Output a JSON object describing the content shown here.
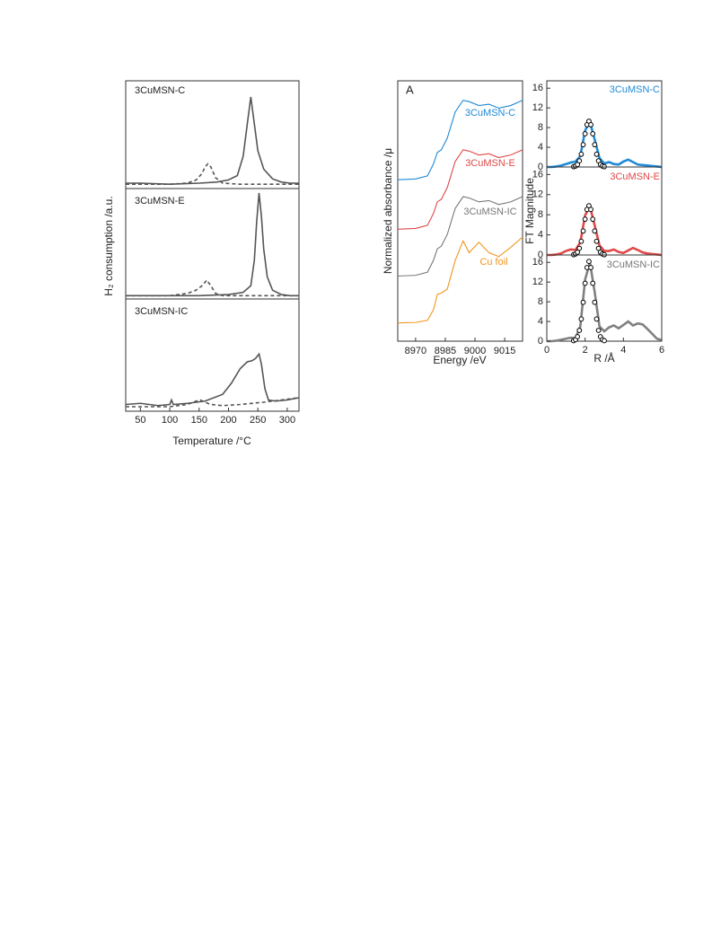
{
  "chart_data": [
    {
      "type": "line",
      "title": "3CuMSN-C",
      "xlim": [
        25,
        320
      ],
      "ylim": [
        0,
        1
      ],
      "series": [
        {
          "color": "#555555",
          "style": "solid",
          "x": [
            25,
            50,
            100,
            150,
            180,
            200,
            215,
            225,
            232,
            238,
            244,
            250,
            260,
            275,
            290,
            305,
            320
          ],
          "values": [
            0.05,
            0.05,
            0.04,
            0.05,
            0.06,
            0.08,
            0.12,
            0.3,
            0.6,
            0.85,
            0.6,
            0.35,
            0.18,
            0.09,
            0.06,
            0.05,
            0.05
          ]
        },
        {
          "color": "#555555",
          "style": "dashed",
          "x": [
            25,
            100,
            130,
            145,
            155,
            160,
            165,
            170,
            178,
            190,
            220,
            260,
            320
          ],
          "values": [
            0.04,
            0.04,
            0.05,
            0.08,
            0.14,
            0.2,
            0.23,
            0.2,
            0.1,
            0.05,
            0.04,
            0.04,
            0.04
          ]
        }
      ]
    },
    {
      "type": "line",
      "title": "3CuMSN-E",
      "ylabel": "H₂ consumption /a.u.",
      "xlim": [
        25,
        320
      ],
      "ylim": [
        0,
        1
      ],
      "series": [
        {
          "color": "#555555",
          "style": "solid",
          "x": [
            25,
            50,
            100,
            150,
            200,
            225,
            238,
            244,
            248,
            252,
            256,
            260,
            266,
            275,
            290,
            305,
            320
          ],
          "values": [
            0.03,
            0.03,
            0.03,
            0.03,
            0.04,
            0.06,
            0.12,
            0.35,
            0.7,
            0.96,
            0.75,
            0.45,
            0.2,
            0.08,
            0.04,
            0.03,
            0.03
          ]
        },
        {
          "color": "#555555",
          "style": "dashed",
          "x": [
            25,
            100,
            130,
            145,
            155,
            163,
            170,
            178,
            190,
            230,
            320
          ],
          "values": [
            0.03,
            0.03,
            0.05,
            0.08,
            0.12,
            0.17,
            0.12,
            0.05,
            0.03,
            0.03,
            0.03
          ]
        }
      ]
    },
    {
      "type": "line",
      "title": "3CuMSN-IC",
      "xlabel": "Temperature /°C",
      "xlim": [
        25,
        320
      ],
      "ylim": [
        0,
        1
      ],
      "xticks": [
        50,
        100,
        150,
        200,
        250,
        300
      ],
      "series": [
        {
          "color": "#555555",
          "style": "solid",
          "x": [
            25,
            50,
            80,
            100,
            103,
            106,
            130,
            160,
            190,
            205,
            220,
            232,
            240,
            246,
            252,
            256,
            262,
            268,
            280,
            300,
            320
          ],
          "values": [
            0.06,
            0.07,
            0.05,
            0.06,
            0.1,
            0.06,
            0.07,
            0.09,
            0.15,
            0.25,
            0.38,
            0.44,
            0.45,
            0.47,
            0.51,
            0.42,
            0.2,
            0.1,
            0.09,
            0.1,
            0.12
          ]
        },
        {
          "color": "#555555",
          "style": "dashed",
          "x": [
            25,
            100,
            130,
            145,
            152,
            160,
            170,
            190,
            220,
            260,
            290,
            320
          ],
          "values": [
            0.04,
            0.04,
            0.06,
            0.09,
            0.1,
            0.08,
            0.06,
            0.05,
            0.06,
            0.08,
            0.1,
            0.12
          ]
        }
      ]
    },
    {
      "type": "line",
      "panel_label": "A",
      "xlabel": "Energy /eV",
      "ylabel": "Normalized absorbance /μ",
      "xlim": [
        8961,
        9024
      ],
      "ylim": [
        0,
        10
      ],
      "xticks": [
        8970,
        8985,
        9000,
        9015
      ],
      "x": [
        8961,
        8970,
        8976,
        8979,
        8981,
        8983,
        8986,
        8990,
        8994,
        8997,
        9002,
        9007,
        9012,
        9018,
        9024
      ],
      "series": [
        {
          "name": "3CuMSN-C",
          "color": "#1f8ad6",
          "values": [
            6.2,
            6.23,
            6.35,
            6.8,
            7.25,
            7.35,
            7.8,
            8.8,
            9.25,
            9.2,
            9.05,
            9.1,
            8.95,
            9.05,
            9.25
          ]
        },
        {
          "name": "3CuMSN-E",
          "color": "#e04848",
          "values": [
            4.3,
            4.33,
            4.45,
            4.9,
            5.35,
            5.45,
            5.9,
            6.9,
            7.35,
            7.3,
            7.15,
            7.2,
            7.05,
            7.15,
            7.35
          ]
        },
        {
          "name": "3CuMSN-IC",
          "color": "#777777",
          "values": [
            2.5,
            2.53,
            2.65,
            3.1,
            3.55,
            3.65,
            4.1,
            5.1,
            5.55,
            5.5,
            5.35,
            5.4,
            5.25,
            5.35,
            5.55
          ]
        },
        {
          "name": "Cu foil",
          "color": "#f0961e",
          "values": [
            0.7,
            0.72,
            0.8,
            1.2,
            1.8,
            1.85,
            2.0,
            3.1,
            3.85,
            3.4,
            3.8,
            3.4,
            3.25,
            3.6,
            4.0
          ]
        }
      ]
    },
    {
      "type": "line",
      "title": "3CuMSN-C",
      "title_color": "#1f8ad6",
      "xlim": [
        0,
        6
      ],
      "ylim": [
        0,
        17.5
      ],
      "yticks": [
        0,
        4,
        8,
        12,
        16
      ],
      "series": [
        {
          "color": "#1f8ad6",
          "style": "solid",
          "x": [
            0,
            0.25,
            0.5,
            0.75,
            1,
            1.25,
            1.5,
            1.75,
            2,
            2.25,
            2.5,
            2.75,
            3,
            3.25,
            3.5,
            3.75,
            4,
            4.25,
            4.5,
            4.75,
            5,
            5.25,
            5.5,
            5.75,
            6
          ],
          "values": [
            0,
            0,
            0.1,
            0.3,
            0.6,
            0.9,
            1.1,
            2.2,
            7.4,
            9.2,
            5.6,
            1.8,
            0.7,
            1.0,
            0.6,
            0.5,
            1.1,
            1.5,
            1.0,
            0.5,
            0.4,
            0.3,
            0.2,
            0.1,
            0
          ]
        },
        {
          "color": "#000000",
          "style": "circles",
          "x": [
            1.4,
            1.5,
            1.6,
            1.7,
            1.8,
            1.9,
            2.0,
            2.1,
            2.2,
            2.3,
            2.4,
            2.5,
            2.6,
            2.7,
            2.8,
            2.9,
            3.0
          ],
          "values": [
            0.06,
            0.19,
            0.52,
            1.26,
            2.59,
            4.53,
            6.75,
            8.58,
            9.3,
            8.58,
            6.75,
            4.53,
            2.59,
            1.26,
            0.52,
            0.19,
            0.06
          ]
        }
      ]
    },
    {
      "type": "line",
      "title": "3CuMSN-E",
      "title_color": "#e04848",
      "ylabel": "FT Magnitude",
      "xlim": [
        0,
        6
      ],
      "ylim": [
        0,
        17.5
      ],
      "yticks": [
        0,
        4,
        8,
        12,
        16
      ],
      "series": [
        {
          "color": "#e04848",
          "style": "solid",
          "x": [
            0,
            0.25,
            0.5,
            0.75,
            1,
            1.25,
            1.5,
            1.75,
            2,
            2.25,
            2.5,
            2.75,
            3,
            3.25,
            3.5,
            3.75,
            4,
            4.25,
            4.5,
            4.75,
            5,
            5.25,
            5.5,
            5.75,
            6
          ],
          "values": [
            0,
            0,
            0.1,
            0.3,
            0.8,
            1.1,
            1.0,
            2.5,
            7.9,
            9.7,
            5.9,
            1.9,
            0.8,
            0.8,
            1.1,
            0.6,
            0.4,
            0.9,
            1.4,
            1.0,
            0.5,
            0.3,
            0.2,
            0.1,
            0
          ]
        },
        {
          "color": "#000000",
          "style": "circles",
          "x": [
            1.4,
            1.5,
            1.6,
            1.7,
            1.8,
            1.9,
            2.0,
            2.1,
            2.2,
            2.3,
            2.4,
            2.5,
            2.6,
            2.7,
            2.8,
            2.9,
            3.0
          ],
          "values": [
            0.06,
            0.2,
            0.55,
            1.32,
            2.72,
            4.77,
            7.11,
            9.05,
            9.8,
            9.05,
            7.11,
            4.77,
            2.72,
            1.32,
            0.55,
            0.2,
            0.06
          ]
        }
      ]
    },
    {
      "type": "line",
      "title": "3CuMSN-IC",
      "title_color": "#777777",
      "xlabel": "R /Å",
      "xlim": [
        0,
        6
      ],
      "ylim": [
        0,
        17.5
      ],
      "xticks": [
        0,
        2,
        4,
        6
      ],
      "yticks": [
        0,
        4,
        8,
        12,
        16
      ],
      "series": [
        {
          "color": "#808080",
          "style": "solid",
          "x": [
            0,
            0.25,
            0.5,
            0.75,
            1,
            1.25,
            1.5,
            1.75,
            2,
            2.25,
            2.5,
            2.75,
            3,
            3.25,
            3.5,
            3.75,
            4,
            4.25,
            4.5,
            4.75,
            5,
            5.25,
            5.5,
            5.75,
            6
          ],
          "values": [
            0,
            0,
            0.1,
            0.3,
            0.5,
            0.7,
            0.6,
            3.0,
            12.5,
            16.0,
            10.0,
            3.0,
            2.0,
            2.8,
            3.2,
            2.6,
            3.3,
            4.0,
            3.2,
            3.6,
            3.4,
            2.5,
            1.5,
            0.5,
            0.2
          ]
        },
        {
          "color": "#000000",
          "style": "circles",
          "x": [
            1.4,
            1.5,
            1.6,
            1.7,
            1.8,
            1.9,
            2.0,
            2.1,
            2.2,
            2.3,
            2.4,
            2.5,
            2.6,
            2.7,
            2.8,
            2.9,
            3.0
          ],
          "values": [
            0.1,
            0.32,
            0.91,
            2.19,
            4.5,
            7.89,
            11.76,
            14.95,
            16.2,
            14.95,
            11.76,
            7.89,
            4.5,
            2.19,
            0.91,
            0.32,
            0.1
          ]
        }
      ]
    }
  ]
}
